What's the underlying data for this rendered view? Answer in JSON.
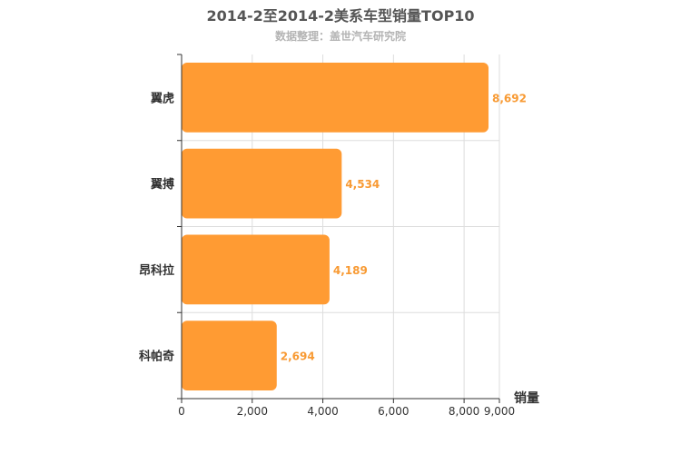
{
  "chart_data": {
    "type": "bar",
    "orientation": "horizontal",
    "title": "2014-2至2014-2美系车型销量TOP10",
    "subtitle": "数据整理：盖世汽车研究院",
    "categories": [
      "翼虎",
      "翼搏",
      "昂科拉",
      "科帕奇"
    ],
    "values": [
      8692,
      4534,
      4189,
      2694
    ],
    "data_labels": [
      "8,692",
      "4,534",
      "4,189",
      "2,694"
    ],
    "xlabel": "销量",
    "ylabel": "",
    "xlim": [
      0,
      9000
    ],
    "xticks": [
      0,
      2000,
      4000,
      6000,
      8000,
      9000
    ],
    "xtick_labels": [
      "0",
      "2,000",
      "4,000",
      "6,000",
      "8,000",
      "9,000"
    ],
    "grid": true,
    "bar_color": "#ff9b33",
    "label_color": "#f89a33"
  }
}
